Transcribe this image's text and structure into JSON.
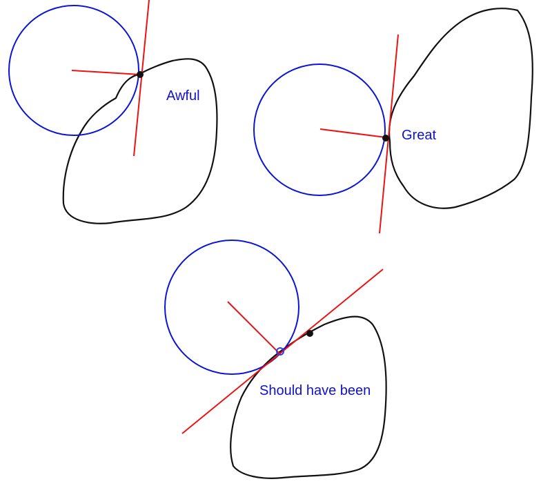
{
  "colors": {
    "circle": "#0a14d8",
    "normal_line": "#ee1111",
    "blob": "#111111",
    "contact_point": "#111111",
    "label": "#1010d0",
    "corrected_point": "#2a3cf0"
  },
  "panels": [
    {
      "id": "awful",
      "label": "Awful"
    },
    {
      "id": "great",
      "label": "Great"
    },
    {
      "id": "should-have-been",
      "label": "Should have been"
    }
  ]
}
